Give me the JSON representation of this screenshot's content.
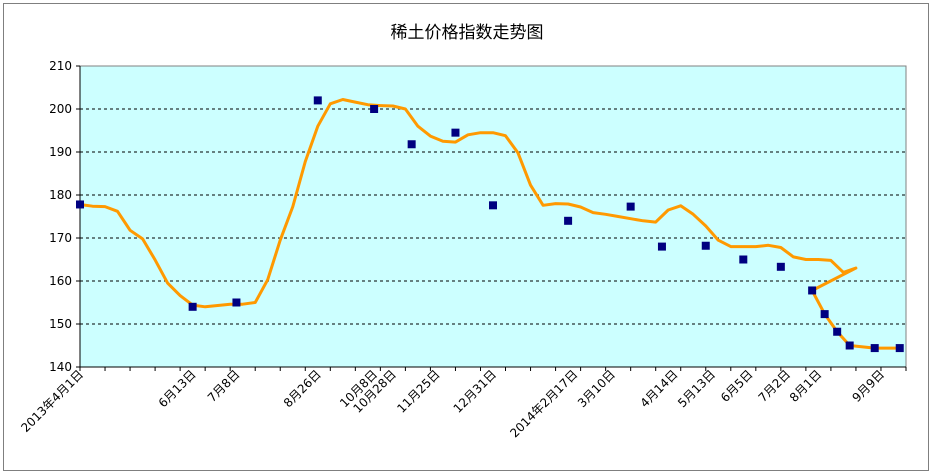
{
  "chart_data": {
    "type": "line",
    "title": "稀土价格指数走势图",
    "xlabel": "",
    "ylabel": "",
    "ylim": [
      140,
      210
    ],
    "y_ticks": [
      140,
      150,
      160,
      170,
      180,
      190,
      200,
      210
    ],
    "grid": true,
    "legend": "none",
    "colors": {
      "plot_bg": "#ccffff",
      "line": "#ff9900",
      "marker": "#000080",
      "grid": "#000000"
    },
    "x_tick_labels": [
      "2013年4月1日",
      "6月13日",
      "7月8日",
      "8月26日",
      "10月8日",
      "10月28日",
      "11月25日",
      "12月31日",
      "2014年2月17日",
      "3月10日",
      "4月14日",
      "5月13日",
      "6月5日",
      "7月2日",
      "8月1日",
      "9月9日"
    ],
    "x_tick_positions": [
      0,
      17,
      24,
      36,
      44,
      48,
      55,
      64,
      76,
      82,
      91,
      97,
      103,
      109,
      114,
      124
    ],
    "x_count": 125,
    "series": [
      {
        "x": [
          0,
          2,
          4,
          6,
          8,
          10,
          12,
          14,
          16,
          18,
          20,
          22,
          24,
          26,
          28,
          30,
          32,
          34,
          36,
          38,
          40,
          42,
          44,
          46,
          48,
          50,
          52,
          54,
          56,
          58,
          60,
          62,
          64,
          66,
          68,
          70,
          72,
          74,
          76,
          78,
          80,
          82,
          84,
          86,
          88,
          90,
          92,
          94,
          96,
          98,
          100,
          102,
          104,
          106,
          108,
          110,
          112,
          114,
          116,
          118,
          120,
          122,
          124
        ],
        "values": [
          177.8,
          177.4,
          177.3,
          176.2,
          171.8,
          169.8,
          164.9,
          159.5,
          156.6,
          154.4,
          154.0,
          154.3,
          154.6,
          154.6,
          155.0,
          160.3,
          169.5,
          177.3,
          187.8,
          196.0,
          201.2,
          202.2,
          201.6,
          201.0,
          200.8,
          200.7,
          200.0,
          196.0,
          193.7,
          192.5,
          192.3,
          194.0,
          194.5,
          194.5,
          193.8,
          189.8,
          182.3,
          177.6,
          178.0,
          177.9,
          177.2,
          175.9,
          175.5,
          175.0,
          174.5,
          174.0,
          173.7,
          176.5,
          177.5,
          175.5,
          172.8,
          169.5,
          168.0,
          168.0,
          168.0,
          168.3,
          167.8,
          165.6,
          165.0,
          165.0,
          164.8,
          162.0,
          163.0
        ],
        "values_comment_skip": null
      }
    ]
  },
  "chart_series_full": {
    "x": [
      0,
      2,
      4,
      6,
      8,
      10,
      12,
      14,
      16,
      18,
      20,
      22,
      24,
      26,
      28,
      30,
      32,
      34,
      36,
      38,
      40,
      42,
      44,
      46,
      48,
      50,
      52,
      54,
      56,
      58,
      60,
      62,
      64,
      66,
      68,
      70,
      72,
      74,
      76,
      78,
      80,
      82,
      84,
      86,
      88,
      90,
      92,
      94,
      96,
      98,
      100,
      102,
      104,
      106,
      108,
      110,
      112,
      114,
      116,
      118,
      120,
      122,
      124
    ],
    "values": [
      177.8,
      177.4,
      177.3,
      176.2,
      171.8,
      169.8,
      164.9,
      159.5,
      156.6,
      154.4,
      154.0,
      154.3,
      154.6,
      154.6,
      155.0,
      160.3,
      169.5,
      177.3,
      187.8,
      196.0,
      201.2,
      202.2,
      201.6,
      201.0,
      200.8,
      200.7,
      200.0,
      196.0,
      193.7,
      192.5,
      192.3,
      194.0,
      194.5,
      194.5,
      193.8,
      189.8,
      182.3,
      177.6,
      178.0,
      177.9,
      177.2,
      175.9,
      175.5,
      175.0,
      174.5,
      174.0,
      173.7,
      176.5,
      177.5,
      175.5,
      172.8,
      169.5,
      168.0,
      168.0,
      168.0,
      168.3,
      167.8,
      165.6,
      165.0,
      165.0,
      164.8,
      162.0,
      163.0
    ]
  },
  "markers": {
    "x": [
      0,
      18,
      25,
      38,
      47,
      53,
      60,
      66,
      78,
      88,
      93,
      100,
      106,
      112,
      117,
      119,
      121,
      123,
      127,
      131
    ],
    "values": [
      177.8,
      154.0,
      155.0,
      202.0,
      200.0,
      191.8,
      194.5,
      177.6,
      174.0,
      177.3,
      168.0,
      168.2,
      165.0,
      163.3,
      157.8,
      152.3,
      148.2,
      145.0,
      144.4,
      144.4
    ]
  }
}
